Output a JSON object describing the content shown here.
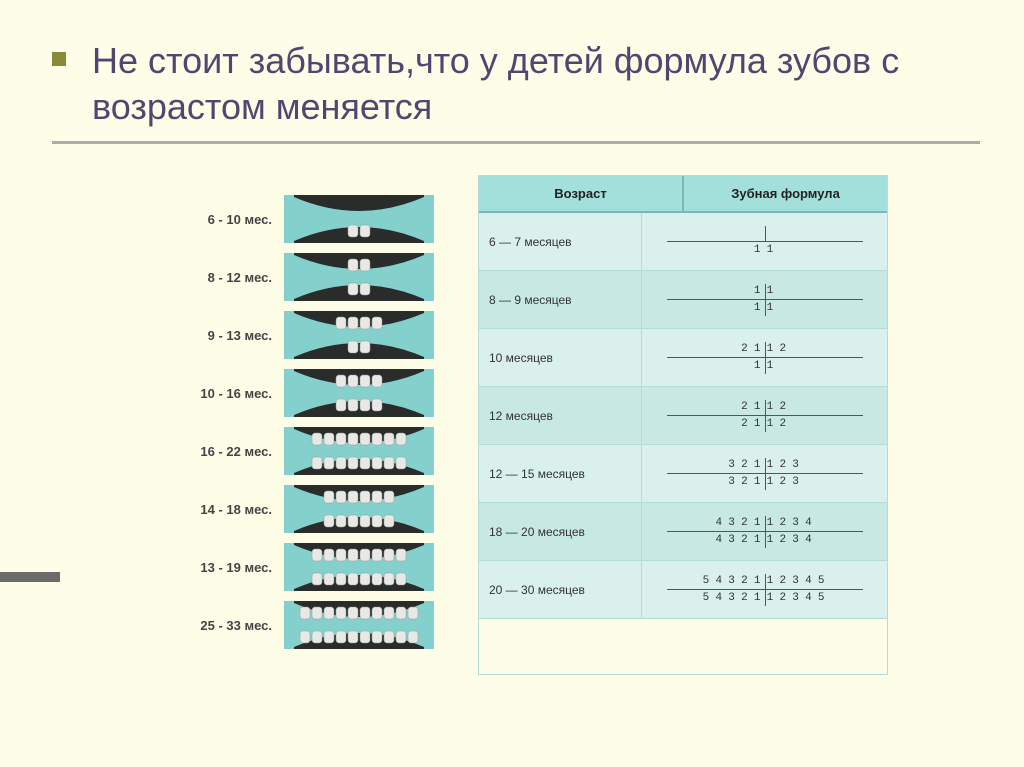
{
  "title": "Не стоит  забывать,что у детей формула зубов с возрастом меняется",
  "left": {
    "rows": [
      {
        "age": "6 - 10 мес.",
        "upper": 0,
        "lower": 2
      },
      {
        "age": "8 - 12 мес.",
        "upper": 2,
        "lower": 2
      },
      {
        "age": "9 - 13 мес.",
        "upper": 4,
        "lower": 2
      },
      {
        "age": "10 - 16 мес.",
        "upper": 4,
        "lower": 4
      },
      {
        "age": "16 - 22 мес.",
        "upper": 8,
        "lower": 8
      },
      {
        "age": "14 - 18 мес.",
        "upper": 6,
        "lower": 6
      },
      {
        "age": "13 - 19 мес.",
        "upper": 8,
        "lower": 8
      },
      {
        "age": "25 - 33 мес.",
        "upper": 10,
        "lower": 10
      }
    ]
  },
  "right": {
    "headers": {
      "age": "Возраст",
      "formula": "Зубная формула"
    },
    "rows": [
      {
        "age": "6 — 7 месяцев",
        "top": "",
        "bot": "1 1",
        "vshort": true
      },
      {
        "age": "8 — 9 месяцев",
        "top": "1 1",
        "bot": "1 1",
        "vshort": false
      },
      {
        "age": "10 месяцев",
        "top": "2 1 1 2",
        "bot": "1 1",
        "vshort": false
      },
      {
        "age": "12 месяцев",
        "top": "2 1 1 2",
        "bot": "2 1 1 2",
        "vshort": false
      },
      {
        "age": "12 — 15 месяцев",
        "top": "3 2 1 1 2 3",
        "bot": "3 2 1 1 2 3",
        "vshort": false
      },
      {
        "age": "18 — 20 месяцев",
        "top": "4 3 2 1 1 2 3 4",
        "bot": "4 3 2 1 1 2 3 4",
        "vshort": false
      },
      {
        "age": "20 — 30 месяцев",
        "top": "5 4 3 2 1 1 2 3 4 5",
        "bot": "5 4 3 2 1 1 2 3 4 5",
        "vshort": false
      }
    ]
  },
  "colors": {
    "bg": "#fefee8",
    "title": "#504770",
    "bullet": "#8a8a3a",
    "gum": "#2a2b2b",
    "tooth": "#e8e8e4",
    "jawbg": "#84d0cc"
  }
}
